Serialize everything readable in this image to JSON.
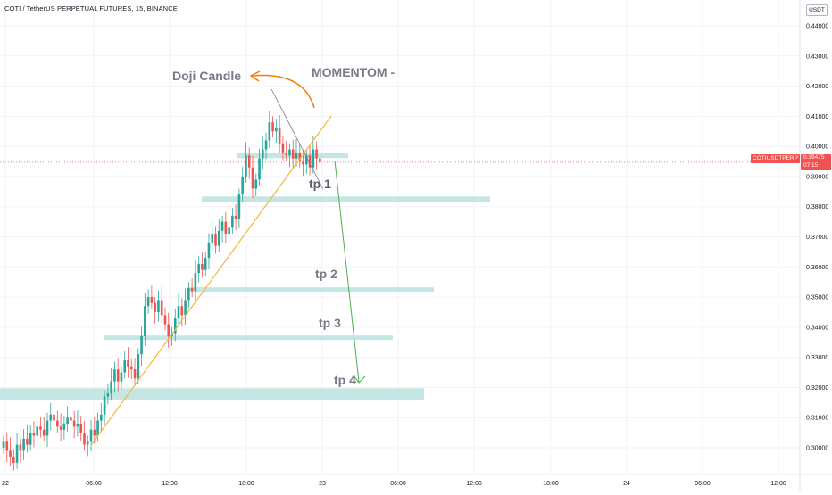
{
  "header": {
    "title": "COTI / TetherUS PERPETUAL FUTURES, 15, BINANCE",
    "currency": "USDT"
  },
  "price_tags": {
    "symbol": "COTIUSDTPERP",
    "last_price": "0.39475",
    "countdown": "07:15"
  },
  "annotations": {
    "doji": "Doji Candle",
    "momentum": "MOMENTOM -",
    "tp1": "tp 1",
    "tp2": "tp 2",
    "tp3": "tp 3",
    "tp4": "tp 4"
  },
  "colors": {
    "up": "#26a69a",
    "down": "#ef5350",
    "zone": "#b2dfdb",
    "trendline": "#f7b731",
    "curve_arrow": "#f57c00",
    "projection_arrow": "#4caf50",
    "wedge_line": "#787b86"
  },
  "chart_data": {
    "type": "candlestick",
    "ylim": [
      0.295,
      0.445
    ],
    "y_ticks": [
      "0.44000",
      "0.43000",
      "0.42000",
      "0.41000",
      "0.40000",
      "0.39000",
      "0.38000",
      "0.37000",
      "0.36000",
      "0.35000",
      "0.34000",
      "0.33000",
      "0.32000",
      "0.31000",
      "0.30000"
    ],
    "x_ticks": [
      "22",
      "06:00",
      "12:00",
      "18:00",
      "23",
      "06:00",
      "12:00",
      "18:00",
      "24",
      "06:00",
      "12:00"
    ],
    "last_price": 0.39475,
    "target_zones": [
      {
        "label": "tp 1",
        "price": 0.3825
      },
      {
        "label": "tp 2",
        "price": 0.3525
      },
      {
        "label": "tp 3",
        "price": 0.3365
      },
      {
        "label": "tp 4",
        "price": 0.3178
      },
      {
        "label": "",
        "price": 0.397
      }
    ],
    "closes": [
      0.302,
      0.299,
      0.297,
      0.295,
      0.301,
      0.299,
      0.303,
      0.301,
      0.305,
      0.304,
      0.307,
      0.306,
      0.304,
      0.309,
      0.311,
      0.309,
      0.307,
      0.306,
      0.308,
      0.31,
      0.309,
      0.307,
      0.308,
      0.305,
      0.301,
      0.302,
      0.306,
      0.304,
      0.309,
      0.311,
      0.317,
      0.318,
      0.322,
      0.326,
      0.322,
      0.325,
      0.329,
      0.327,
      0.326,
      0.323,
      0.331,
      0.337,
      0.347,
      0.35,
      0.348,
      0.345,
      0.349,
      0.344,
      0.341,
      0.337,
      0.338,
      0.343,
      0.347,
      0.344,
      0.349,
      0.353,
      0.352,
      0.358,
      0.361,
      0.359,
      0.363,
      0.368,
      0.371,
      0.367,
      0.372,
      0.375,
      0.371,
      0.373,
      0.377,
      0.376,
      0.384,
      0.39,
      0.397,
      0.393,
      0.386,
      0.389,
      0.396,
      0.399,
      0.402,
      0.408,
      0.405,
      0.406,
      0.401,
      0.398,
      0.397,
      0.399,
      0.396,
      0.398,
      0.395,
      0.394,
      0.397,
      0.393,
      0.399,
      0.396,
      0.3948
    ],
    "x_range_candles": [
      0,
      95
    ]
  }
}
